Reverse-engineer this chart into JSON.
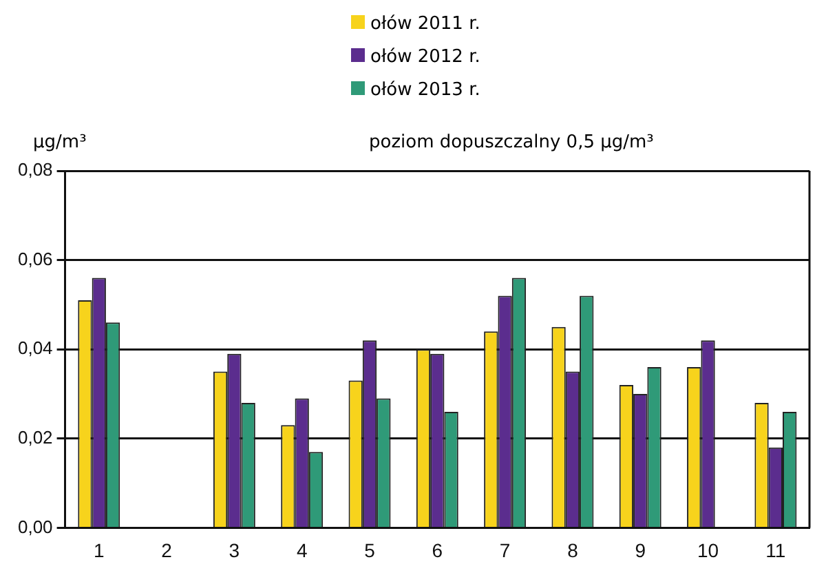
{
  "chart_data": {
    "type": "bar",
    "ylabel": "µg/m³",
    "annotations": [
      "poziom dopuszczalny 0,5 µg/m³"
    ],
    "categories": [
      "1",
      "2",
      "3",
      "4",
      "5",
      "6",
      "7",
      "8",
      "9",
      "10",
      "11"
    ],
    "series": [
      {
        "name": "ołów  2011 r.",
        "color": "#f7d31c",
        "values": [
          0.051,
          null,
          0.035,
          0.023,
          0.033,
          0.04,
          0.044,
          0.045,
          0.032,
          0.036,
          0.028
        ]
      },
      {
        "name": "ołów  2012 r.",
        "color": "#5b2d8e",
        "values": [
          0.056,
          null,
          0.039,
          0.029,
          0.042,
          0.039,
          0.052,
          0.035,
          0.03,
          0.042,
          0.018
        ]
      },
      {
        "name": "ołów  2013 r.",
        "color": "#2f9a78",
        "values": [
          0.046,
          null,
          0.028,
          0.017,
          0.029,
          0.026,
          0.056,
          0.052,
          0.036,
          null,
          0.026
        ]
      }
    ],
    "ylim": [
      0,
      0.08
    ],
    "yticks": [
      {
        "value": 0,
        "label": "0,00"
      },
      {
        "value": 0.02,
        "label": "0,02"
      },
      {
        "value": 0.04,
        "label": "0,04"
      },
      {
        "value": 0.06,
        "label": "0,06"
      },
      {
        "value": 0.08,
        "label": "0,08"
      }
    ],
    "grid": "y",
    "legend": "top"
  }
}
